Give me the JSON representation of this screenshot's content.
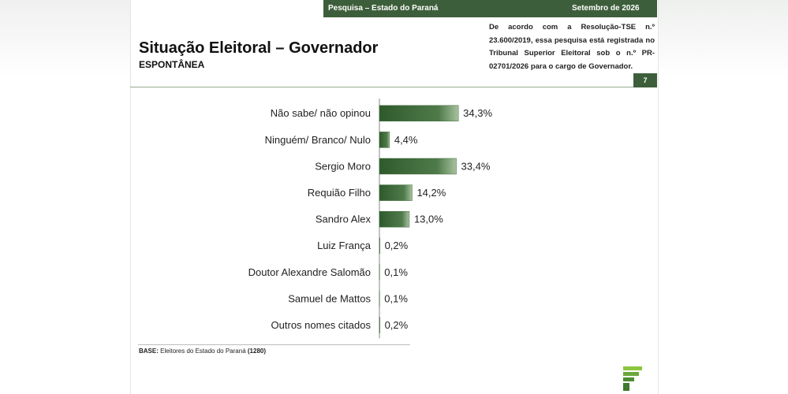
{
  "header": {
    "survey": "Pesquisa – Estado do Paraná",
    "date": "Setembro de 2026"
  },
  "note": "De acordo com a Resolução-TSE n.º 23.600/2019, essa pesquisa está registrada no Tribunal Superior Eleitoral sob o n.º PR-02701/2026 para o cargo de Governador.",
  "page_number": "7",
  "base": {
    "label": "BASE:",
    "text": "Eleitores do Estado do Paraná",
    "count": "(1280)"
  },
  "chart_data": {
    "type": "bar",
    "orientation": "horizontal",
    "title": "Situação Eleitoral – Governador",
    "subtitle": "ESPONTÂNEA",
    "categories": [
      "Não sabe/ não opinou",
      "Ninguém/ Branco/ Nulo",
      "Sergio Moro",
      "Requião Filho",
      "Sandro Alex",
      "Luiz França",
      "Doutor Alexandre Salomão",
      "Samuel de Mattos",
      "Outros nomes citados"
    ],
    "values": [
      34.3,
      4.4,
      33.4,
      14.2,
      13.0,
      0.2,
      0.1,
      0.1,
      0.2
    ],
    "value_labels": [
      "34,3%",
      "4,4%",
      "33,4%",
      "14,2%",
      "13,0%",
      "0,2%",
      "0,1%",
      "0,1%",
      "0,2%"
    ],
    "color": "#3e6b3a"
  }
}
